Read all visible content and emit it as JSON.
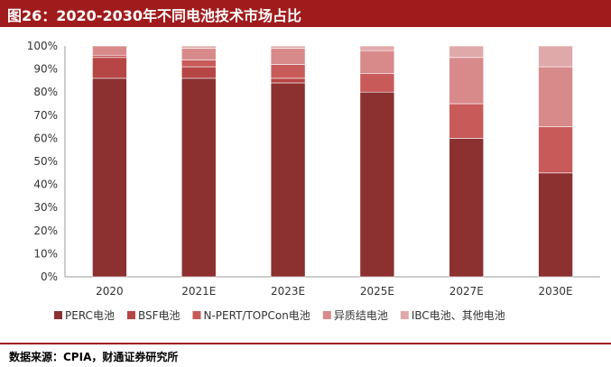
{
  "figure": {
    "title": "图26：2020-2030年不同电池技术市场占比",
    "source": "数据来源：CPIA，财通证券研究所"
  },
  "colors": {
    "title_bar": "#a01c1c",
    "series": [
      "#8c3030",
      "#b64545",
      "#c95a5a",
      "#d88a8a",
      "#e0a9a9"
    ]
  },
  "chart_data": {
    "type": "bar",
    "stacked": true,
    "title": "",
    "xlabel": "",
    "ylabel": "",
    "categories": [
      "2020",
      "2021E",
      "2023E",
      "2025E",
      "2027E",
      "2030E"
    ],
    "ylim": [
      0,
      100
    ],
    "yticks": [
      "0%",
      "10%",
      "20%",
      "30%",
      "40%",
      "50%",
      "60%",
      "70%",
      "80%",
      "90%",
      "100%"
    ],
    "grid": false,
    "legend_position": "bottom",
    "series": [
      {
        "name": "PERC电池",
        "values": [
          86,
          86,
          84,
          80,
          60,
          45
        ]
      },
      {
        "name": "BSF电池",
        "values": [
          9,
          5,
          2,
          0,
          0,
          0
        ]
      },
      {
        "name": "N-PERT/TOPCon电池",
        "values": [
          1,
          3,
          6,
          8,
          15,
          20
        ]
      },
      {
        "name": "异质结电池",
        "values": [
          4,
          5,
          7,
          10,
          20,
          26
        ]
      },
      {
        "name": "IBC电池、其他电池",
        "values": [
          0,
          1,
          1,
          2,
          5,
          9
        ]
      }
    ]
  }
}
